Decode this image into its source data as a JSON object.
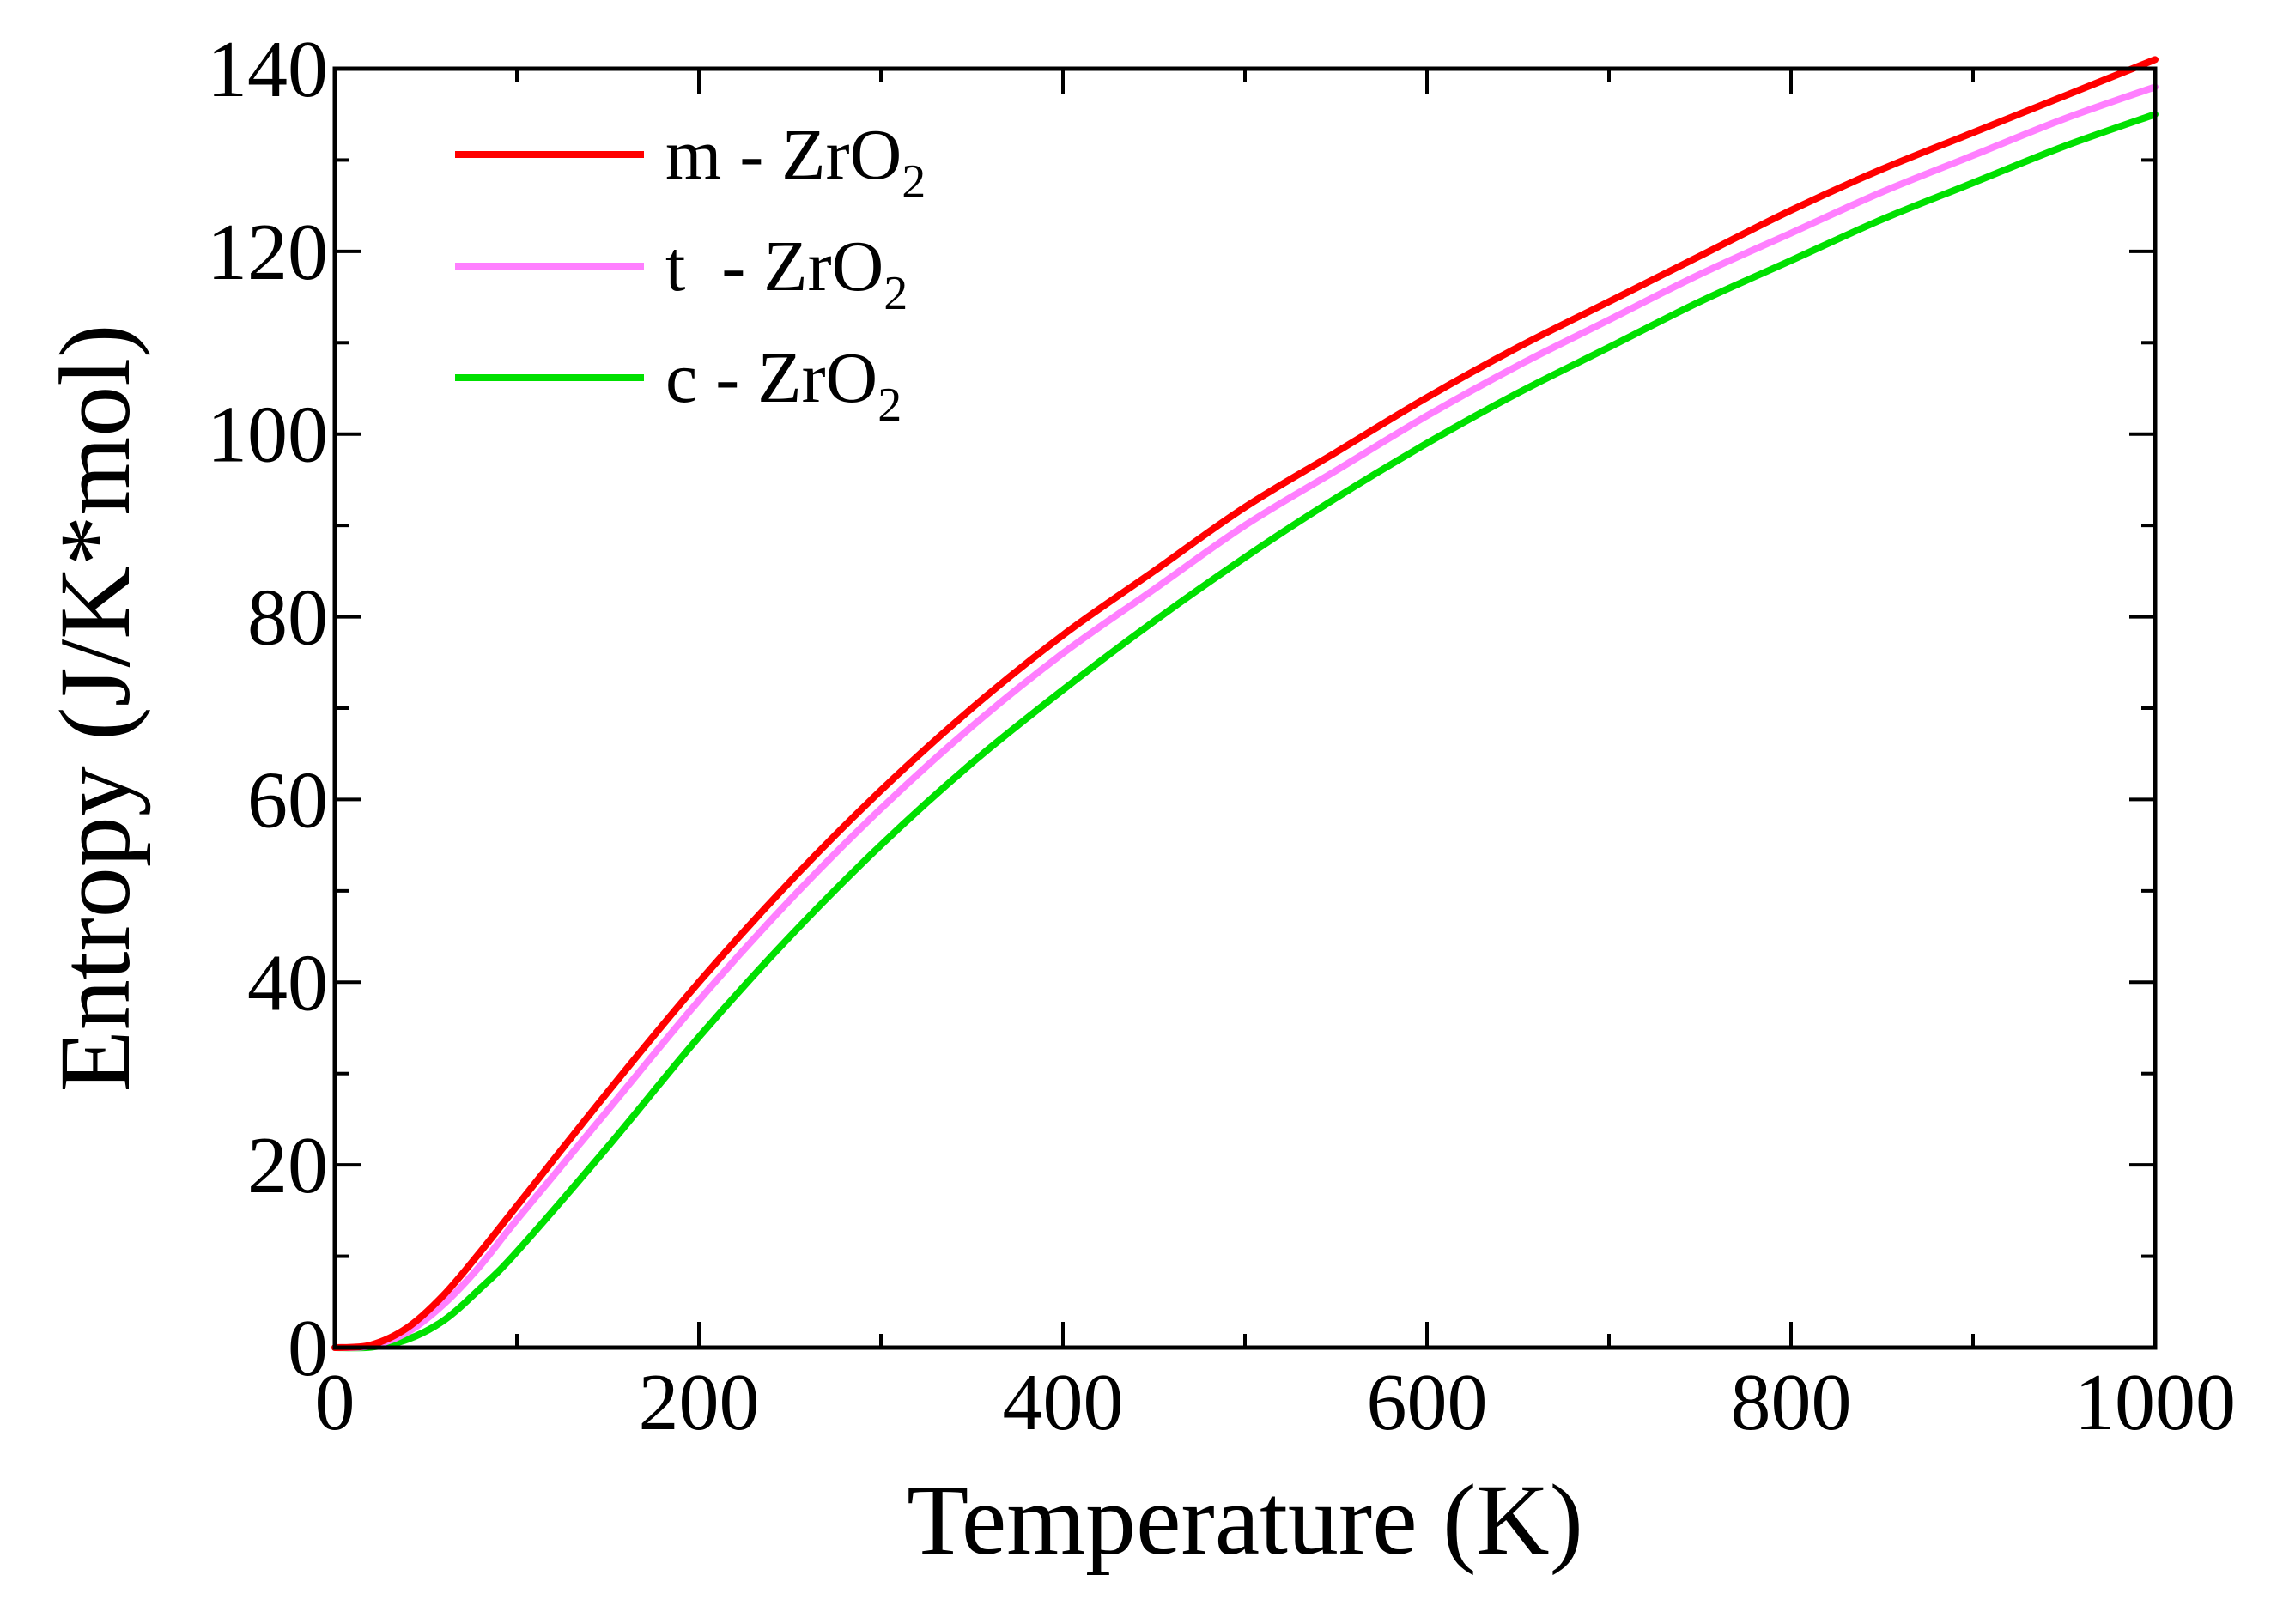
{
  "chart_data": {
    "type": "line",
    "xlabel": "Temperature (K)",
    "ylabel": "Entropy (J/K*mol)",
    "xlim": [
      0,
      1000
    ],
    "ylim": [
      0,
      140
    ],
    "x_ticks": [
      0,
      200,
      400,
      600,
      800,
      1000
    ],
    "y_ticks": [
      0,
      20,
      40,
      60,
      80,
      100,
      120,
      140
    ],
    "grid": false,
    "legend_position": "top-left",
    "series": [
      {
        "name": "m - ZrO",
        "subscript": "2",
        "color": "#ff0000",
        "x": [
          0,
          20,
          40,
          60,
          80,
          100,
          150,
          200,
          250,
          300,
          350,
          400,
          450,
          500,
          550,
          600,
          650,
          700,
          750,
          800,
          850,
          900,
          950,
          1000
        ],
        "y": [
          0,
          0.3,
          2.2,
          5.8,
          10.5,
          15.5,
          28,
          40,
          51,
          61,
          70,
          78,
          85,
          92,
          98,
          104,
          109.5,
          114.5,
          119.5,
          124.5,
          129,
          133,
          137,
          141
        ]
      },
      {
        "name": "t  - ZrO",
        "subscript": "2",
        "color": "#ff7fff",
        "x": [
          0,
          20,
          40,
          60,
          80,
          100,
          150,
          200,
          250,
          300,
          350,
          400,
          450,
          500,
          550,
          600,
          650,
          700,
          750,
          800,
          850,
          900,
          950,
          1000
        ],
        "y": [
          0,
          0.2,
          1.7,
          4.8,
          9,
          14,
          26,
          38,
          49,
          59,
          68,
          76,
          83,
          90,
          96,
          102,
          107.5,
          112.5,
          117.5,
          122,
          126.5,
          130.5,
          134.5,
          138
        ]
      },
      {
        "name": "c - ZrO",
        "subscript": "2",
        "color": "#00e000",
        "x": [
          0,
          20,
          40,
          60,
          80,
          100,
          150,
          200,
          250,
          300,
          350,
          400,
          450,
          500,
          550,
          600,
          650,
          700,
          750,
          800,
          850,
          900,
          950,
          1000
        ],
        "y": [
          0,
          0.05,
          0.9,
          3,
          6.5,
          10.5,
          22,
          34,
          45,
          55,
          64,
          72,
          79.5,
          86.5,
          93,
          99,
          104.5,
          109.5,
          114.5,
          119,
          123.5,
          127.5,
          131.5,
          135
        ]
      }
    ]
  }
}
